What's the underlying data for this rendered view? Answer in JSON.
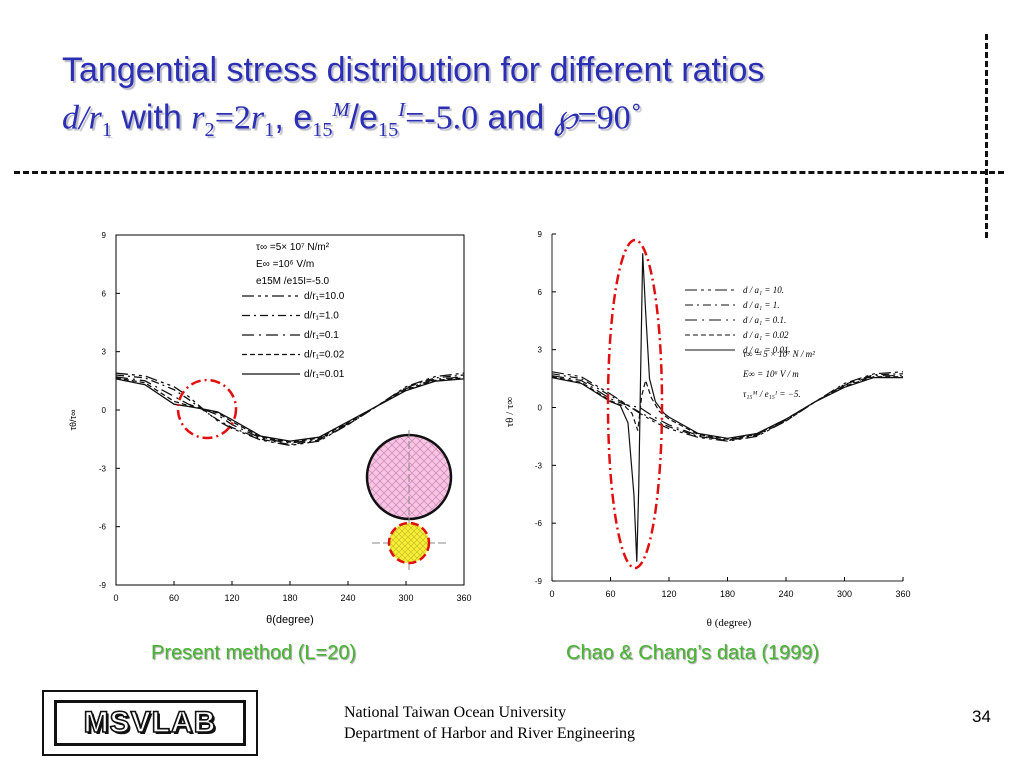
{
  "slide": {
    "title": {
      "line1": "Tangential stress distribution for different ratios",
      "d": "d",
      "slash": "/",
      "r": "r",
      "sub1": "1",
      "with": "with",
      "r2": "r",
      "sub2": "2",
      "eq": "=2",
      "r1b": "r",
      "sub1b": "1",
      "comma": ",",
      "e_a": "e",
      "sub15a": "15",
      "supM": "M",
      "slash2": "/e",
      "sub15b": "15",
      "supI": "I",
      "ratio": "=-5.0",
      "and": "and",
      "angle_symbol": "℘",
      "angle": "=90˚"
    },
    "caption_left": "Present method (L=20)",
    "caption_right": "Chao & Chang’s data (1999)",
    "logo": "MSVLAB",
    "footer_line1": "National Taiwan Ocean University",
    "footer_line2": "Department of Harbor and River Engineering",
    "page_number": "34"
  },
  "left_legend": {
    "params": [
      "τ∞ =5× 10⁷ N/m²",
      "E∞ =10⁶ V/m",
      "e15M /e15I=-5.0"
    ],
    "entries": [
      "d/r₁=10.0",
      "d/r₁=1.0",
      "d/r₁=0.1",
      "d/r₁=0.02",
      "d/r₁=0.01"
    ]
  },
  "right_legend": {
    "entries": [
      "d / a₁ = 10.",
      "d / a₁ = 1.",
      "d / a₁ = 0.1.",
      "d / a₁ = 0.02",
      "d / a₁ = 0.01"
    ],
    "params": [
      "τ∞ = 5 × 10⁷ N / m²",
      "E∞ = 10⁶ V / m",
      "τ₁₅ᴹ / e₁₅ᴵ = −5."
    ]
  },
  "colors": {
    "title": "#2b2fb3",
    "caption": "#46b52f",
    "highlight": "#e01010",
    "inclusion_big": "#f6c6e2",
    "inclusion_small": "#f7ee3a"
  },
  "chart_data": [
    {
      "type": "line",
      "xlabel": "θ(degree)",
      "ylabel": "τθ/τ∞",
      "xlim": [
        0,
        360
      ],
      "ylim": [
        -9,
        9
      ],
      "xticks": [
        0,
        60,
        120,
        180,
        240,
        300,
        360
      ],
      "yticks": [
        -9,
        -6,
        -3,
        0,
        3,
        6,
        9
      ],
      "x": [
        0,
        30,
        60,
        75,
        90,
        105,
        120,
        150,
        180,
        210,
        240,
        270,
        300,
        330,
        360
      ],
      "series": [
        {
          "name": "d/r₁=10.0",
          "values": [
            1.9,
            1.75,
            1.2,
            0.7,
            0.05,
            -0.55,
            -0.95,
            -1.55,
            -1.82,
            -1.6,
            -0.75,
            0.2,
            1.2,
            1.72,
            1.9
          ]
        },
        {
          "name": "d/r₁=1.0",
          "values": [
            1.8,
            1.65,
            1.05,
            0.55,
            0.0,
            -0.5,
            -0.9,
            -1.5,
            -1.78,
            -1.55,
            -0.75,
            0.2,
            1.15,
            1.65,
            1.8
          ]
        },
        {
          "name": "d/r₁=0.1",
          "values": [
            1.7,
            1.5,
            0.7,
            0.3,
            0.05,
            -0.25,
            -0.75,
            -1.45,
            -1.7,
            -1.5,
            -0.7,
            0.2,
            1.1,
            1.58,
            1.7
          ]
        },
        {
          "name": "d/r₁=0.02",
          "values": [
            1.65,
            1.4,
            0.45,
            0.22,
            0.05,
            -0.15,
            -0.6,
            -1.4,
            -1.65,
            -1.45,
            -0.65,
            0.2,
            1.05,
            1.52,
            1.65
          ]
        },
        {
          "name": "d/r₁=0.01",
          "values": [
            1.6,
            1.3,
            0.3,
            0.18,
            0.05,
            -0.1,
            -0.5,
            -1.35,
            -1.6,
            -1.4,
            -0.6,
            0.2,
            1.0,
            1.48,
            1.6
          ]
        }
      ]
    },
    {
      "type": "line",
      "xlabel": "θ (degree)",
      "ylabel": "τθ / τ∞",
      "xlim": [
        0,
        360
      ],
      "ylim": [
        -9,
        9
      ],
      "xticks": [
        0,
        60,
        120,
        180,
        240,
        300,
        360
      ],
      "yticks": [
        -9,
        -6,
        -3,
        0,
        3,
        6,
        9
      ],
      "series": [
        {
          "name": "d / a₁ = 10.",
          "x": [
            0,
            30,
            60,
            75,
            90,
            105,
            120,
            150,
            180,
            210,
            240,
            270,
            300,
            330,
            360
          ],
          "values": [
            1.85,
            1.6,
            0.7,
            0.2,
            -0.3,
            -0.75,
            -1.1,
            -1.55,
            -1.75,
            -1.5,
            -0.7,
            0.3,
            1.25,
            1.75,
            1.85
          ]
        },
        {
          "name": "d / a₁ = 1.",
          "x": [
            0,
            30,
            60,
            75,
            90,
            105,
            120,
            150,
            180,
            210,
            240,
            270,
            300,
            330,
            360
          ],
          "values": [
            1.75,
            1.5,
            0.6,
            0.2,
            -0.25,
            -0.65,
            -1.0,
            -1.5,
            -1.72,
            -1.45,
            -0.7,
            0.3,
            1.2,
            1.7,
            1.75
          ]
        },
        {
          "name": "d / a₁ = 0.1.",
          "x": [
            0,
            30,
            60,
            75,
            90,
            105,
            120,
            150,
            180,
            210,
            240,
            270,
            300,
            330,
            360
          ],
          "values": [
            1.65,
            1.4,
            0.45,
            0.15,
            0.0,
            -0.5,
            -0.9,
            -1.45,
            -1.7,
            -1.4,
            -0.65,
            0.3,
            1.15,
            1.65,
            1.65
          ]
        },
        {
          "name": "d / a₁ = 0.02",
          "x": [
            0,
            30,
            60,
            75,
            82,
            88,
            92,
            96,
            102,
            110,
            120,
            150,
            180,
            210,
            240,
            270,
            300,
            330,
            360
          ],
          "values": [
            1.6,
            1.3,
            0.35,
            0.05,
            -0.3,
            -1.2,
            0.6,
            1.4,
            0.5,
            -0.2,
            -0.6,
            -1.4,
            -1.65,
            -1.4,
            -0.6,
            0.3,
            1.1,
            1.6,
            1.6
          ]
        },
        {
          "name": "d / a₁ = 0.01",
          "x": [
            0,
            30,
            60,
            70,
            78,
            84,
            87,
            89,
            91,
            93,
            96,
            100,
            106,
            115,
            120,
            150,
            180,
            210,
            240,
            270,
            300,
            330,
            360
          ],
          "values": [
            1.55,
            1.25,
            0.3,
            0.1,
            -0.8,
            -4.5,
            -8.0,
            -4.0,
            2.0,
            8.0,
            5.0,
            1.5,
            0.3,
            -0.3,
            -0.5,
            -1.35,
            -1.6,
            -1.35,
            -0.6,
            0.3,
            1.05,
            1.55,
            1.55
          ]
        }
      ]
    }
  ]
}
